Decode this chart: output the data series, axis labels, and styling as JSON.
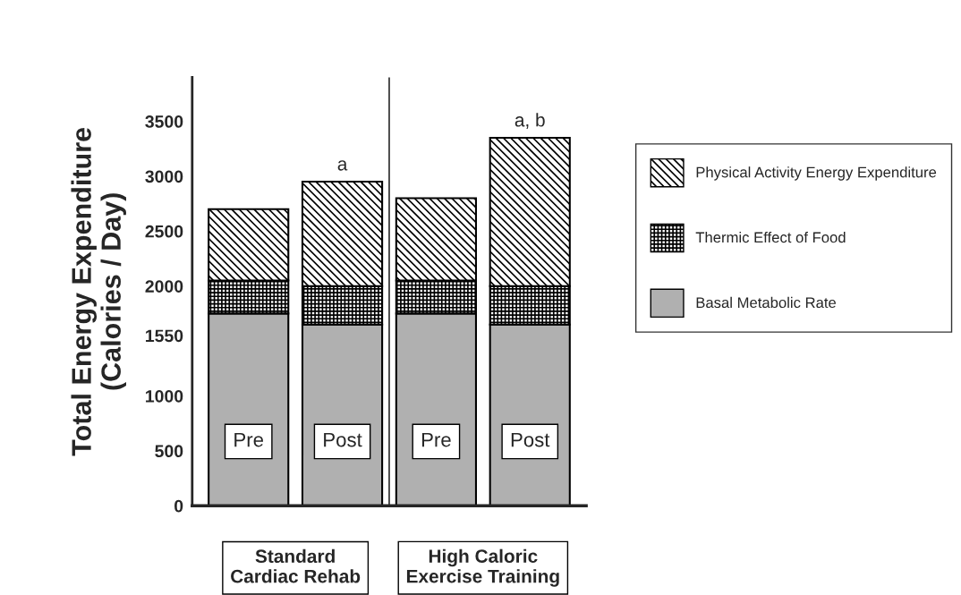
{
  "chart_data": {
    "type": "bar",
    "stacked": true,
    "ylabel": "Total Energy Expenditure\n(Calories / Day)",
    "categories": [
      "Pre",
      "Post",
      "Pre",
      "Post"
    ],
    "series": [
      {
        "name": "Basal Metabolic Rate",
        "color": "#b0b0b0",
        "values": [
          1750,
          1650,
          1750,
          1650
        ]
      },
      {
        "name": "Thermic Effect of Food",
        "color": "#000000",
        "values": [
          300,
          350,
          300,
          350
        ]
      },
      {
        "name": "Physical Activity Energy Expenditure",
        "color": "#000000",
        "values": [
          650,
          950,
          750,
          1350
        ],
        "value_labels": [
          null,
          "a",
          null,
          "a, b"
        ]
      }
    ],
    "ylim": [
      0,
      3900
    ],
    "yticks": [
      0,
      500,
      1000,
      1550,
      2000,
      2500,
      3000,
      3500
    ],
    "annotations": [
      "Standard\nCardiac Rehab",
      "High Caloric\nExercise Training"
    ],
    "legend": "right",
    "grid": false
  }
}
